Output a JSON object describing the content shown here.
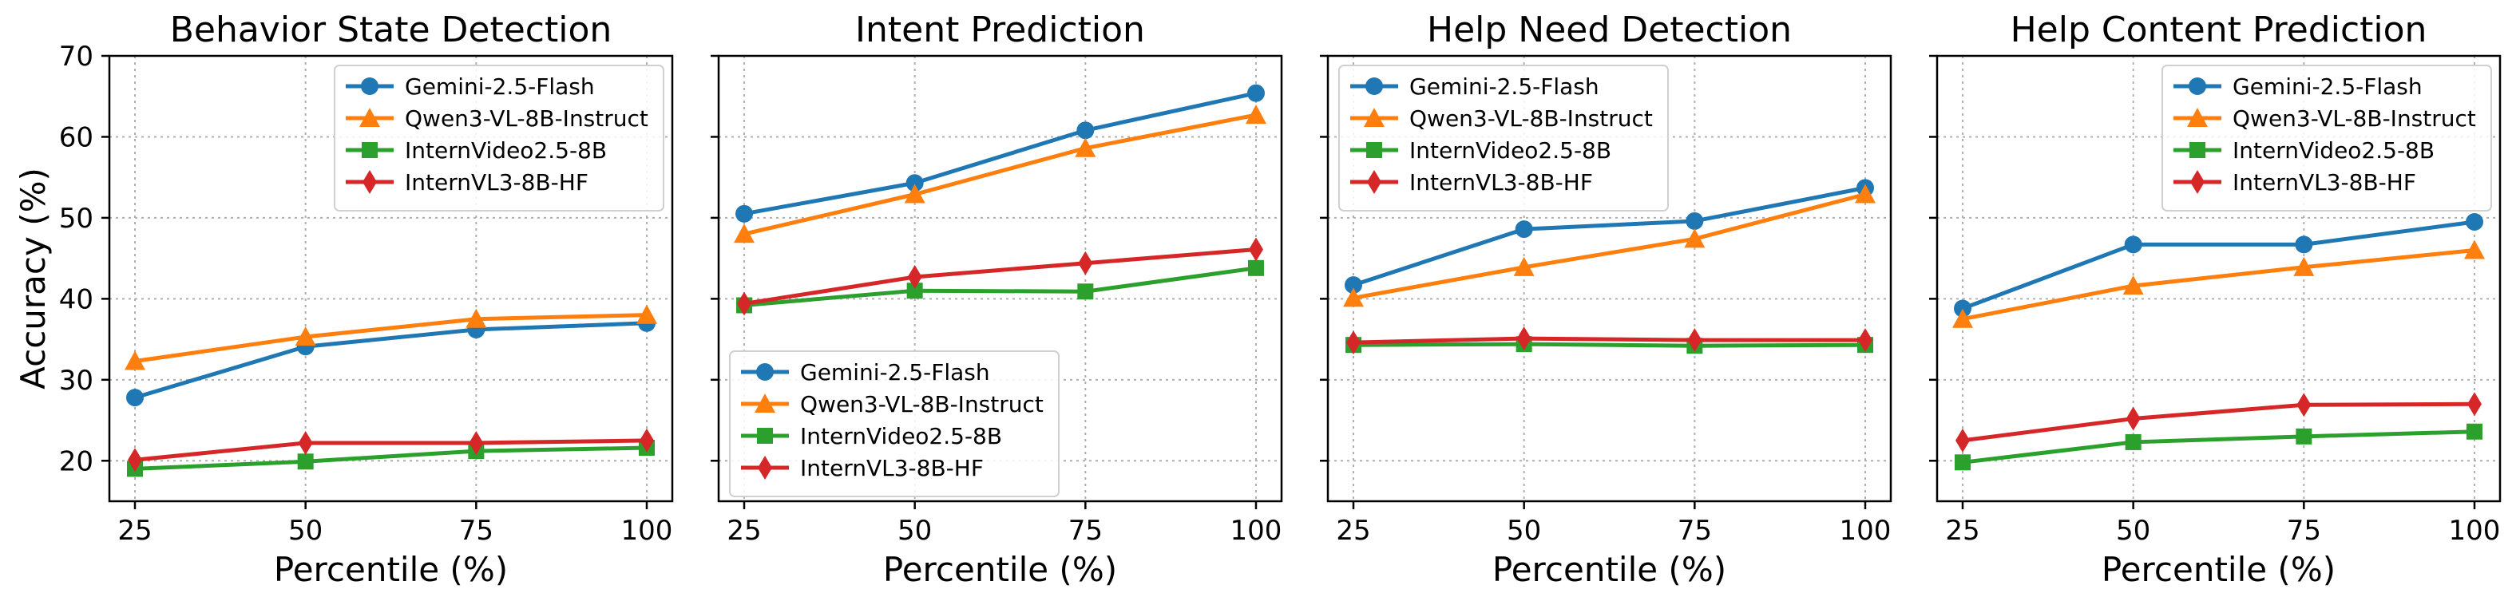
{
  "chart_data": [
    {
      "type": "line",
      "title": "Behavior State Detection",
      "xlabel": "Percentile (%)",
      "ylabel": "Accuracy (%)",
      "x": [
        25,
        50,
        75,
        100
      ],
      "xticks": [
        25,
        50,
        75,
        100
      ],
      "ylim": [
        15,
        70
      ],
      "yticks": [
        20,
        30,
        40,
        50,
        60,
        70
      ],
      "grid": true,
      "legend": "top-right",
      "series": [
        {
          "name": "Gemini-2.5-Flash",
          "color": "#1f77b4",
          "marker": "circle",
          "values": [
            27.8,
            34.1,
            36.2,
            37.0
          ]
        },
        {
          "name": "Qwen3-VL-8B-Instruct",
          "color": "#ff7f0e",
          "marker": "triangle",
          "values": [
            32.3,
            35.3,
            37.5,
            38.0
          ]
        },
        {
          "name": "InternVideo2.5-8B",
          "color": "#2ca02c",
          "marker": "square",
          "values": [
            19.0,
            19.9,
            21.2,
            21.6
          ]
        },
        {
          "name": "InternVL3-8B-HF",
          "color": "#d62728",
          "marker": "diamond",
          "values": [
            20.1,
            22.2,
            22.2,
            22.5
          ]
        }
      ]
    },
    {
      "type": "line",
      "title": "Intent Prediction",
      "xlabel": "Percentile (%)",
      "ylabel": "",
      "x": [
        25,
        50,
        75,
        100
      ],
      "xticks": [
        25,
        50,
        75,
        100
      ],
      "ylim": [
        15,
        70
      ],
      "yticks": [
        20,
        30,
        40,
        50,
        60,
        70
      ],
      "grid": true,
      "legend": "lower-left",
      "series": [
        {
          "name": "Gemini-2.5-Flash",
          "color": "#1f77b4",
          "marker": "circle",
          "values": [
            50.5,
            54.3,
            60.8,
            65.4
          ]
        },
        {
          "name": "Qwen3-VL-8B-Instruct",
          "color": "#ff7f0e",
          "marker": "triangle",
          "values": [
            48.0,
            52.9,
            58.6,
            62.7
          ]
        },
        {
          "name": "InternVideo2.5-8B",
          "color": "#2ca02c",
          "marker": "square",
          "values": [
            39.2,
            41.0,
            40.9,
            43.8
          ]
        },
        {
          "name": "InternVL3-8B-HF",
          "color": "#d62728",
          "marker": "diamond",
          "values": [
            39.4,
            42.7,
            44.4,
            46.1
          ]
        }
      ]
    },
    {
      "type": "line",
      "title": "Help Need Detection",
      "xlabel": "Percentile (%)",
      "ylabel": "",
      "x": [
        25,
        50,
        75,
        100
      ],
      "xticks": [
        25,
        50,
        75,
        100
      ],
      "ylim": [
        15,
        70
      ],
      "yticks": [
        20,
        30,
        40,
        50,
        60,
        70
      ],
      "grid": true,
      "legend": "top-left",
      "series": [
        {
          "name": "Gemini-2.5-Flash",
          "color": "#1f77b4",
          "marker": "circle",
          "values": [
            41.7,
            48.6,
            49.6,
            53.7
          ]
        },
        {
          "name": "Qwen3-VL-8B-Instruct",
          "color": "#ff7f0e",
          "marker": "triangle",
          "values": [
            40.1,
            43.9,
            47.4,
            52.9
          ]
        },
        {
          "name": "InternVideo2.5-8B",
          "color": "#2ca02c",
          "marker": "square",
          "values": [
            34.3,
            34.4,
            34.2,
            34.3
          ]
        },
        {
          "name": "InternVL3-8B-HF",
          "color": "#d62728",
          "marker": "diamond",
          "values": [
            34.6,
            35.1,
            34.9,
            34.9
          ]
        }
      ]
    },
    {
      "type": "line",
      "title": "Help Content Prediction",
      "xlabel": "Percentile (%)",
      "ylabel": "",
      "x": [
        25,
        50,
        75,
        100
      ],
      "xticks": [
        25,
        50,
        75,
        100
      ],
      "ylim": [
        15,
        70
      ],
      "yticks": [
        20,
        30,
        40,
        50,
        60,
        70
      ],
      "grid": true,
      "legend": "top-right",
      "series": [
        {
          "name": "Gemini-2.5-Flash",
          "color": "#1f77b4",
          "marker": "circle",
          "values": [
            38.8,
            46.7,
            46.7,
            49.5
          ]
        },
        {
          "name": "Qwen3-VL-8B-Instruct",
          "color": "#ff7f0e",
          "marker": "triangle",
          "values": [
            37.5,
            41.6,
            43.9,
            46.0
          ]
        },
        {
          "name": "InternVideo2.5-8B",
          "color": "#2ca02c",
          "marker": "square",
          "values": [
            19.8,
            22.3,
            23.0,
            23.6
          ]
        },
        {
          "name": "InternVL3-8B-HF",
          "color": "#d62728",
          "marker": "diamond",
          "values": [
            22.5,
            25.2,
            26.9,
            27.0
          ]
        }
      ]
    }
  ]
}
